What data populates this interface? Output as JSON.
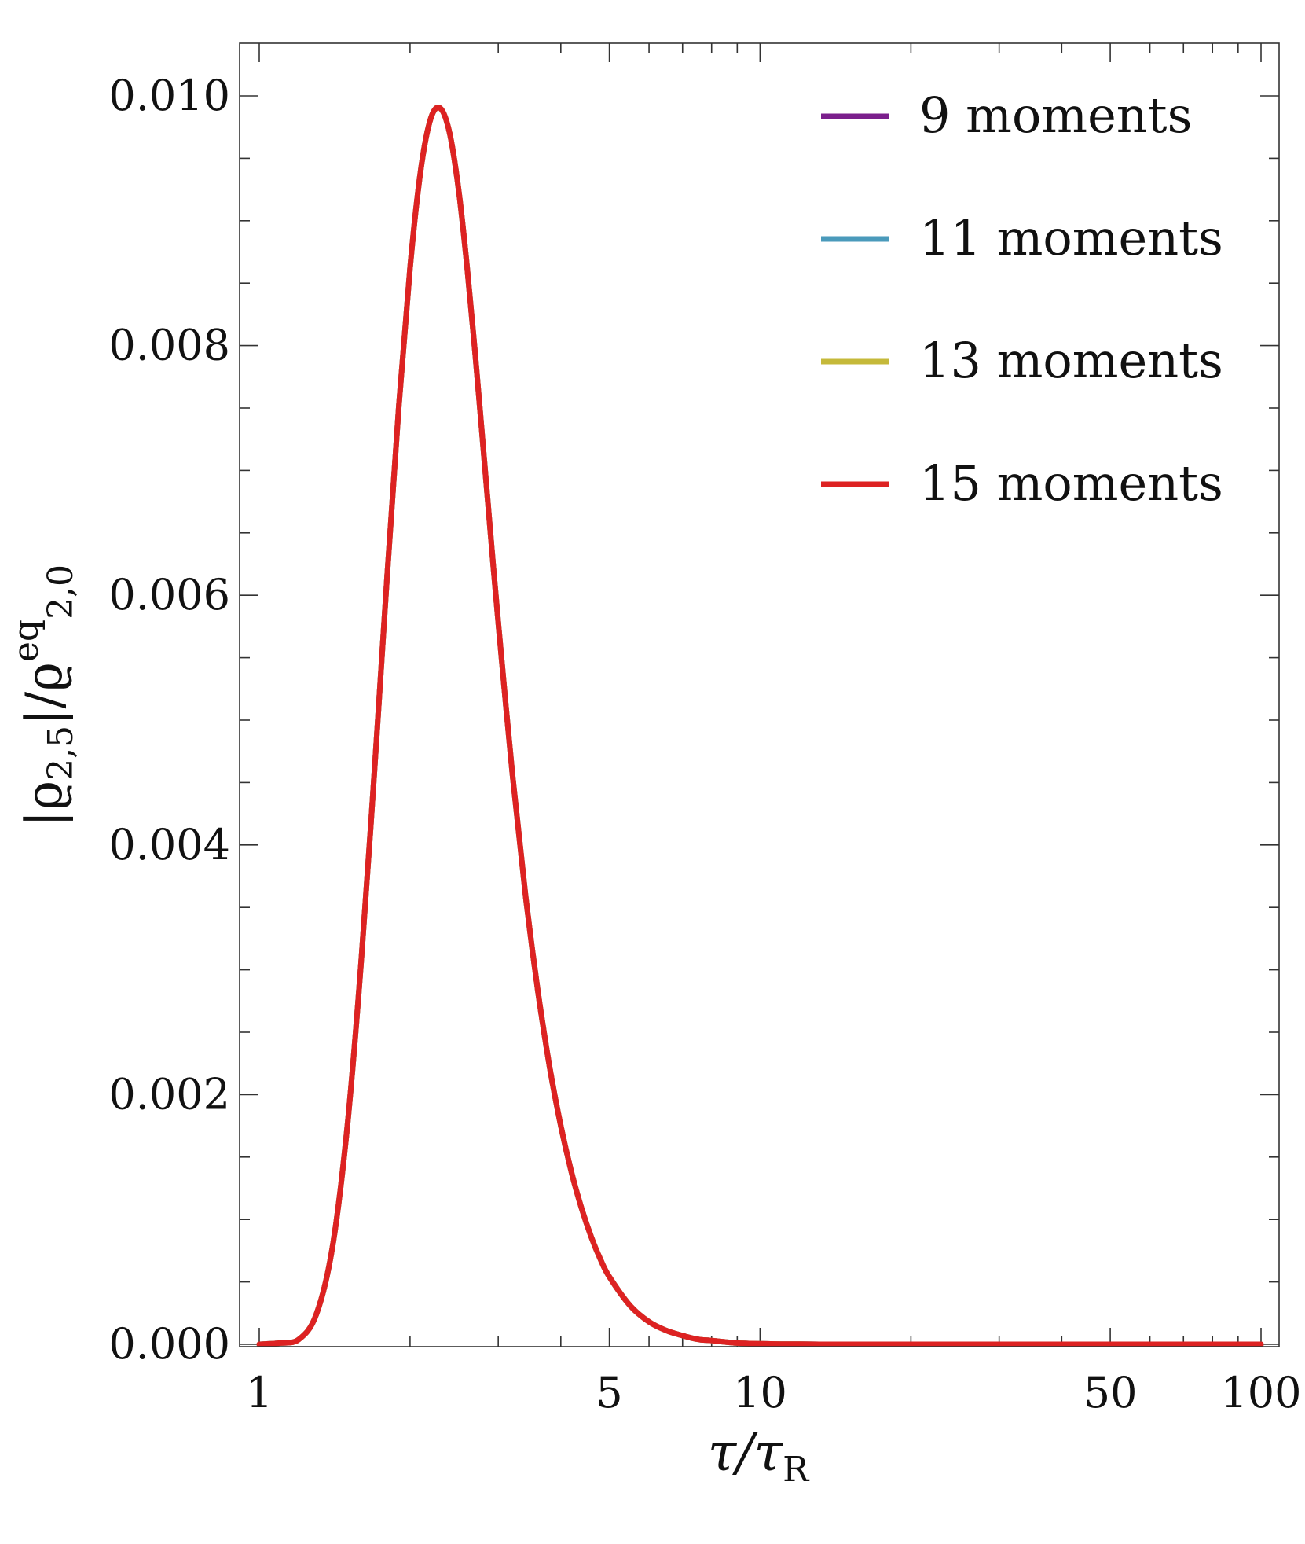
{
  "chart_data": {
    "type": "line",
    "title": "",
    "xlabel": {
      "main": "τ/τ",
      "sub": "R"
    },
    "ylabel": {
      "prefix": "|ϱ",
      "sub1": "2,5",
      "mid": "|/ϱ",
      "sup": "eq",
      "sub2": "2,0"
    },
    "x_scale": "log",
    "xlim": [
      1,
      100
    ],
    "ylim": [
      0,
      0.0104
    ],
    "x_ticks": [
      {
        "value": 1,
        "label": "1"
      },
      {
        "value": 5,
        "label": "5"
      },
      {
        "value": 10,
        "label": "10"
      },
      {
        "value": 50,
        "label": "50"
      },
      {
        "value": 100,
        "label": "100"
      }
    ],
    "y_ticks": [
      {
        "value": 0,
        "label": "0.000"
      },
      {
        "value": 0.002,
        "label": "0.002"
      },
      {
        "value": 0.004,
        "label": "0.004"
      },
      {
        "value": 0.006,
        "label": "0.006"
      },
      {
        "value": 0.008,
        "label": "0.008"
      },
      {
        "value": 0.01,
        "label": "0.010"
      }
    ],
    "grid": false,
    "legend_position": "top-right",
    "x": [
      1,
      1.1,
      1.2,
      1.3,
      1.4,
      1.5,
      1.6,
      1.7,
      1.8,
      1.9,
      2.0,
      2.1,
      2.2,
      2.3,
      2.4,
      2.5,
      2.6,
      2.7,
      2.8,
      2.9,
      3.0,
      3.2,
      3.4,
      3.6,
      3.8,
      4.0,
      4.2,
      4.4,
      4.6,
      4.8,
      5.0,
      5.5,
      6.0,
      6.5,
      7.0,
      7.5,
      8.0,
      9.0,
      10,
      11,
      12,
      14,
      16,
      20,
      30,
      50,
      100
    ],
    "series": [
      {
        "name": "9 moments",
        "color": "#7b1f8c",
        "values": [
          0,
          1e-05,
          4e-05,
          0.00024,
          0.00078,
          0.00176,
          0.0031,
          0.00462,
          0.00615,
          0.00752,
          0.00862,
          0.0094,
          0.00982,
          0.0099,
          0.0097,
          0.00925,
          0.00863,
          0.00792,
          0.00718,
          0.00646,
          0.00578,
          0.00458,
          0.0036,
          0.00283,
          0.00222,
          0.00175,
          0.00138,
          0.00109,
          0.00086,
          0.00068,
          0.00054,
          0.00031,
          0.00018,
          0.00011,
          7e-05,
          4e-05,
          3e-05,
          1e-05,
          5e-06,
          2e-06,
          1e-06,
          0,
          0,
          0,
          0,
          0,
          0
        ]
      },
      {
        "name": "11 moments",
        "color": "#4a9abb",
        "values": [
          0,
          1e-05,
          4e-05,
          0.00024,
          0.00078,
          0.00176,
          0.0031,
          0.00462,
          0.00615,
          0.00752,
          0.00862,
          0.0094,
          0.00982,
          0.0099,
          0.0097,
          0.00925,
          0.00863,
          0.00792,
          0.00718,
          0.00646,
          0.00578,
          0.00458,
          0.0036,
          0.00283,
          0.00222,
          0.00175,
          0.00138,
          0.00109,
          0.00086,
          0.00068,
          0.00054,
          0.00031,
          0.00018,
          0.00011,
          7e-05,
          4e-05,
          3e-05,
          1e-05,
          5e-06,
          2e-06,
          1e-06,
          0,
          0,
          0,
          0,
          0,
          0
        ]
      },
      {
        "name": "13 moments",
        "color": "#c5b93a",
        "values": [
          0,
          1e-05,
          4e-05,
          0.00024,
          0.00078,
          0.00176,
          0.0031,
          0.00462,
          0.00615,
          0.00752,
          0.00862,
          0.0094,
          0.00982,
          0.0099,
          0.0097,
          0.00925,
          0.00863,
          0.00792,
          0.00718,
          0.00646,
          0.00578,
          0.00458,
          0.0036,
          0.00283,
          0.00222,
          0.00175,
          0.00138,
          0.00109,
          0.00086,
          0.00068,
          0.00054,
          0.00031,
          0.00018,
          0.00011,
          7e-05,
          4e-05,
          3e-05,
          1e-05,
          5e-06,
          2e-06,
          1e-06,
          0,
          0,
          0,
          0,
          0,
          0
        ]
      },
      {
        "name": "15 moments",
        "color": "#dd2222",
        "values": [
          0,
          1e-05,
          4e-05,
          0.00024,
          0.00078,
          0.00176,
          0.0031,
          0.00462,
          0.00615,
          0.00752,
          0.00862,
          0.0094,
          0.00982,
          0.0099,
          0.0097,
          0.00925,
          0.00863,
          0.00792,
          0.00718,
          0.00646,
          0.00578,
          0.00458,
          0.0036,
          0.00283,
          0.00222,
          0.00175,
          0.00138,
          0.00109,
          0.00086,
          0.00068,
          0.00054,
          0.00031,
          0.00018,
          0.00011,
          7e-05,
          4e-05,
          3e-05,
          1e-05,
          5e-06,
          2e-06,
          1e-06,
          0,
          0,
          0,
          0,
          0,
          0
        ]
      }
    ]
  }
}
